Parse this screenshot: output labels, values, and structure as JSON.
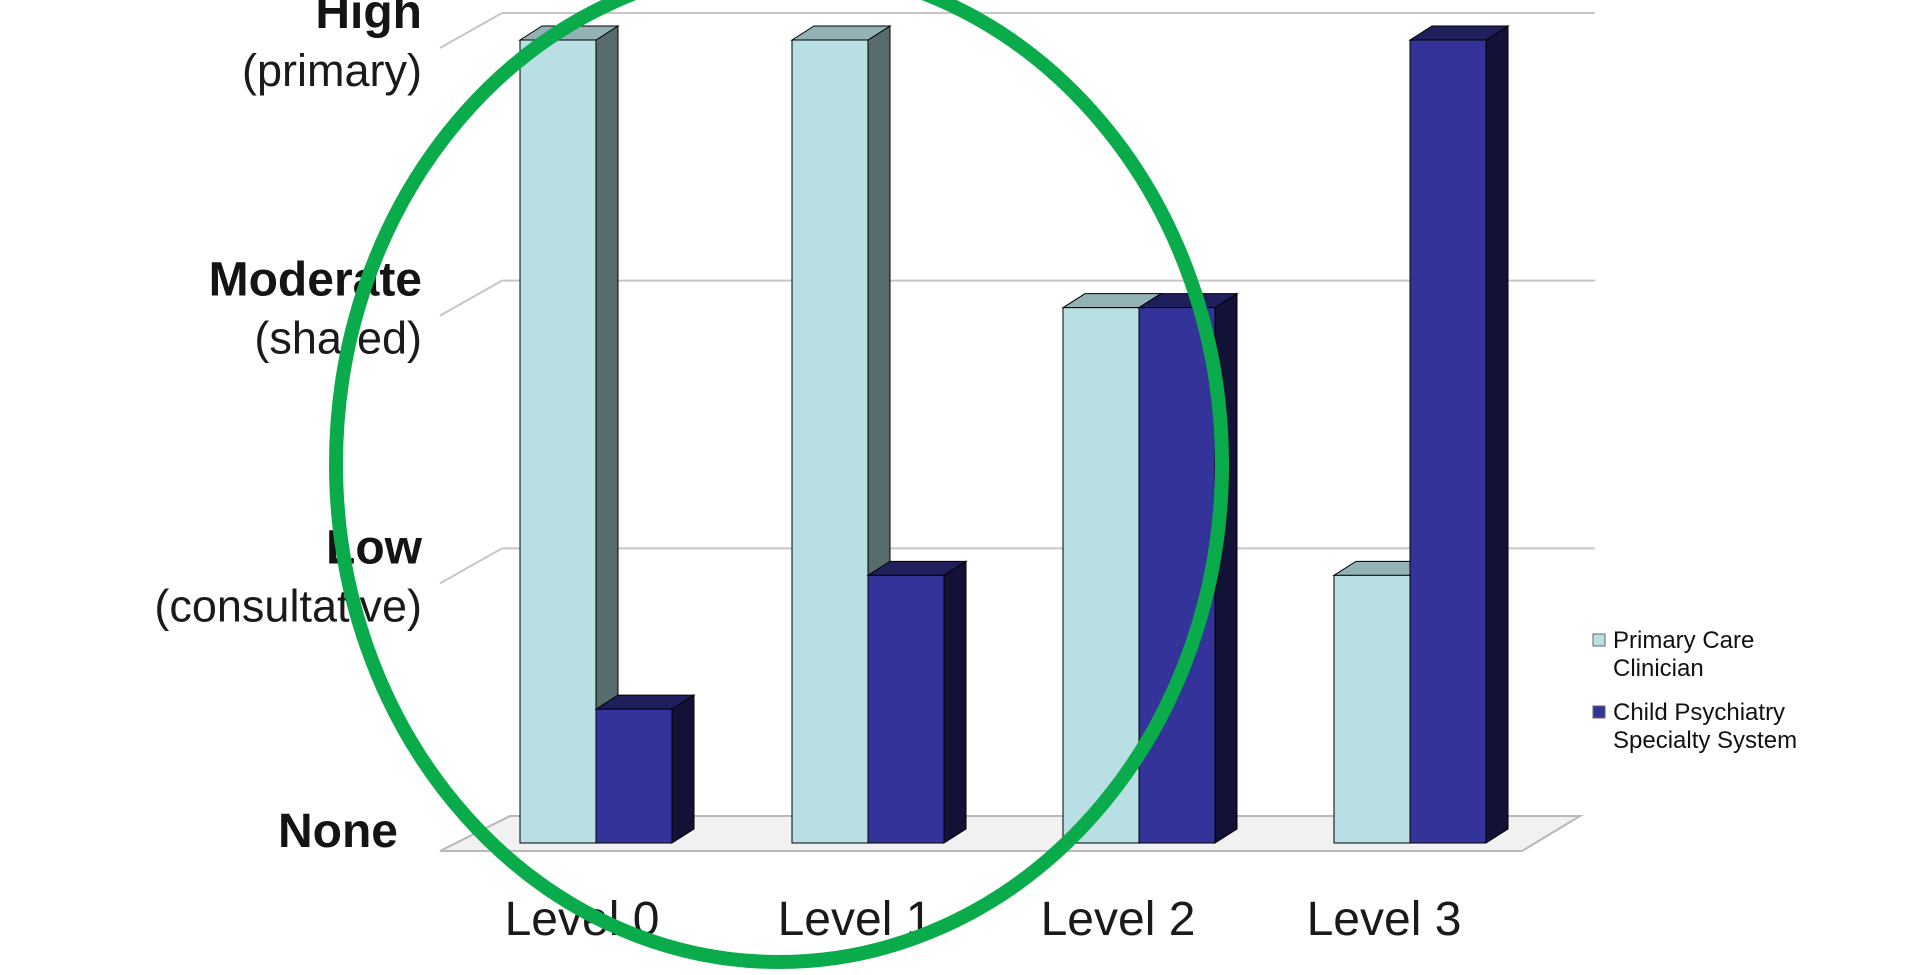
{
  "chart_data": {
    "type": "bar",
    "categories": [
      "Level 0",
      "Level 1",
      "Level 2",
      "Level 3"
    ],
    "y_levels": [
      {
        "value": 0,
        "label": "None",
        "sublabel": ""
      },
      {
        "value": 1,
        "label": "Low",
        "sublabel": "(consultative)"
      },
      {
        "value": 2,
        "label": "Moderate",
        "sublabel": "(shared)"
      },
      {
        "value": 3,
        "label": "High",
        "sublabel": "(primary)"
      }
    ],
    "series": [
      {
        "name": "Primary Care Clinician",
        "color": "#b8dfe3",
        "values": [
          3,
          3,
          2,
          1
        ]
      },
      {
        "name": "Child Psychiatry Specialty System",
        "color": "#33339a",
        "values": [
          0.5,
          1,
          2,
          3
        ]
      }
    ],
    "ylim": [
      0,
      3
    ],
    "grid": true,
    "legend_position": "right",
    "annotation": {
      "shape": "ellipse",
      "color": "#0aab4a",
      "encloses": [
        "Level 0",
        "Level 1",
        "Level 2"
      ]
    }
  }
}
